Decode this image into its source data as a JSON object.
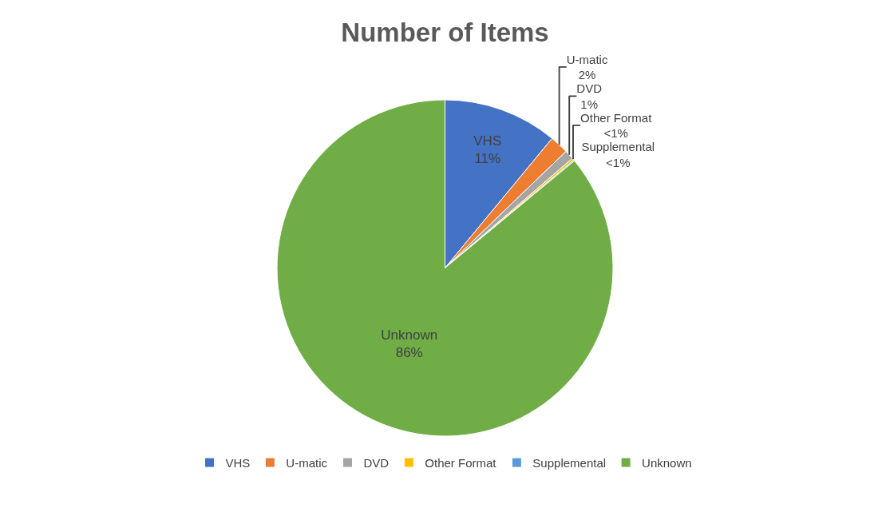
{
  "chart_data": {
    "type": "pie",
    "title": "Number of Items",
    "categories": [
      "VHS",
      "U-matic",
      "DVD",
      "Other Format",
      "Supplemental",
      "Unknown"
    ],
    "values": [
      11,
      1.8,
      0.9,
      0.2,
      0.1,
      86
    ],
    "value_labels": [
      "11%",
      "2%",
      "1%",
      "<1%",
      "<1%",
      "86%"
    ],
    "colors": [
      "#4472c4",
      "#ed7d31",
      "#a5a5a5",
      "#ffc000",
      "#5b9bd5",
      "#70ad47"
    ],
    "legend": "bottom"
  }
}
